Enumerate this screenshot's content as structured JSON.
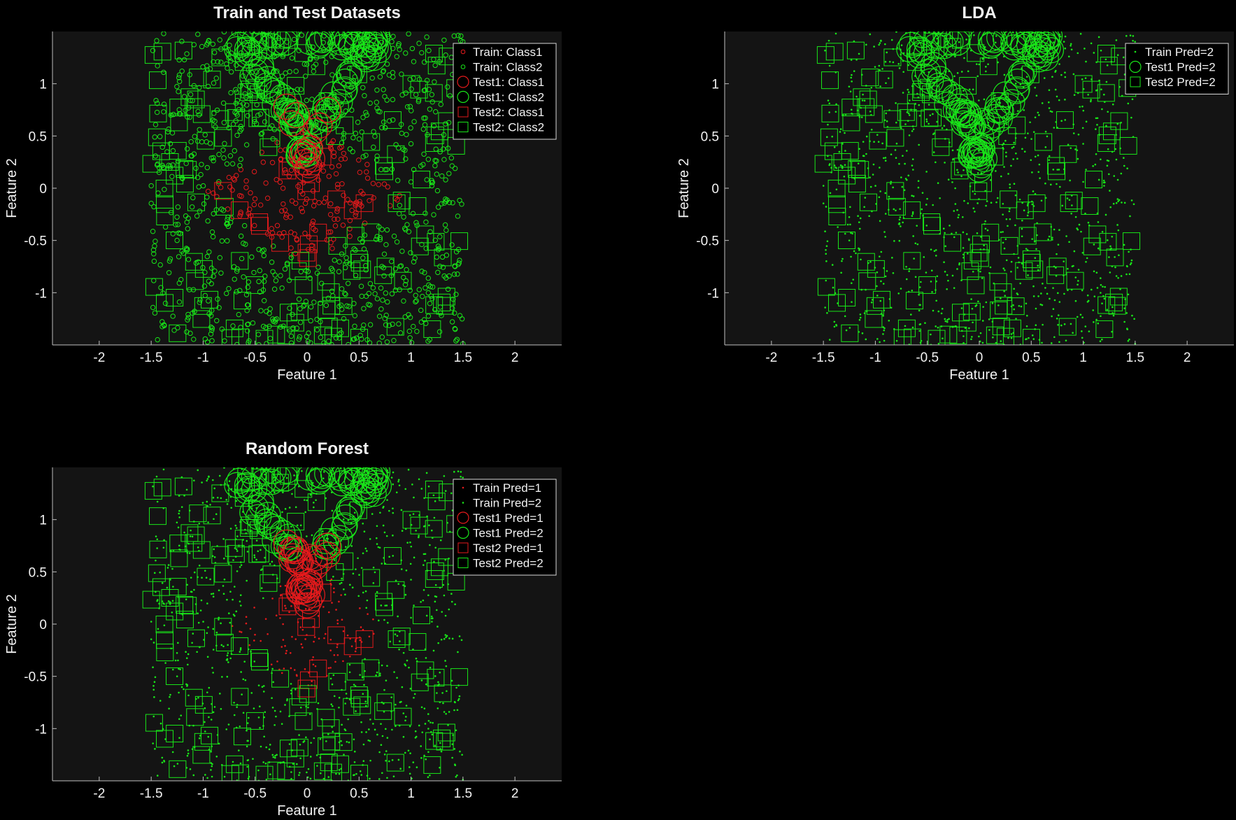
{
  "figure": {
    "background": "#000000",
    "axes_background": "#141414",
    "axis_color": "#bfbfbf",
    "class1_color": "#e41a1c",
    "class2_color": "#19e619"
  },
  "chart_data": [
    {
      "type": "scatter",
      "title": "Train and Test Datasets",
      "xlabel": "Feature 1",
      "ylabel": "Feature 2",
      "xlim": [
        -2.45,
        2.45
      ],
      "ylim": [
        -1.5,
        1.5
      ],
      "xticks": [
        -2,
        -1.5,
        -1,
        -0.5,
        0,
        0.5,
        1,
        1.5,
        2
      ],
      "yticks": [
        -1,
        -0.5,
        0,
        0.5,
        1
      ],
      "grid": false,
      "legend_position": "top-right",
      "legend": [
        "Train: Class1",
        "Train: Class2",
        "Test1: Class1",
        "Test1: Class2",
        "Test2: Class1",
        "Test2: Class2"
      ],
      "series": [
        {
          "name": "Train: Class1",
          "marker": "small-circle",
          "color": "#e41a1c",
          "x_range": [
            -1,
            1
          ],
          "y_range": [
            -0.75,
            0.65
          ],
          "description": "points inside the central diamond region |x|+|y|<1"
        },
        {
          "name": "Train: Class2",
          "marker": "small-circle",
          "color": "#19e619",
          "x_range": [
            -1.5,
            1.5
          ],
          "y_range": [
            -1.5,
            1.5
          ],
          "description": "points outside the central region"
        },
        {
          "name": "Test1: Class1",
          "marker": "large-circle",
          "color": "#e41a1c",
          "x": [
            0.0,
            -0.02,
            0.02,
            -0.05,
            0.05,
            0.0,
            -0.03,
            0.03,
            -0.15,
            0.12,
            -0.2,
            0.2,
            -0.1,
            0.08
          ],
          "y": [
            0.3,
            0.25,
            0.22,
            0.32,
            0.28,
            0.18,
            0.35,
            0.38,
            0.62,
            0.6,
            0.78,
            0.75,
            0.7,
            0.55
          ]
        },
        {
          "name": "Test1: Class2",
          "marker": "large-circle",
          "color": "#19e619",
          "description": "V-shaped arc of points from (-0.7,1.45) and (0.7,1.45) down to (0,0.3)"
        },
        {
          "name": "Test2: Class1",
          "marker": "square",
          "color": "#e41a1c",
          "x_range": [
            -0.9,
            0.9
          ],
          "y_range": [
            -0.7,
            0.6
          ]
        },
        {
          "name": "Test2: Class2",
          "marker": "square",
          "color": "#19e619",
          "x_range": [
            -1.5,
            1.5
          ],
          "y_range": [
            -1.5,
            1.5
          ]
        }
      ]
    },
    {
      "type": "scatter",
      "title": "LDA",
      "xlabel": "Feature 1",
      "ylabel": "Feature 2",
      "xlim": [
        -2.45,
        2.45
      ],
      "ylim": [
        -1.5,
        1.5
      ],
      "xticks": [
        -2,
        -1.5,
        -1,
        -0.5,
        0,
        0.5,
        1,
        1.5,
        2
      ],
      "yticks": [
        -1,
        -0.5,
        0,
        0.5,
        1
      ],
      "grid": false,
      "legend_position": "top-right",
      "legend": [
        "Train Pred=2",
        "Test1 Pred=2",
        "Test2 Pred=2"
      ],
      "series": [
        {
          "name": "Train Pred=2",
          "marker": "dot",
          "color": "#19e619",
          "description": "all training points predicted class 2"
        },
        {
          "name": "Test1 Pred=2",
          "marker": "large-circle",
          "color": "#19e619",
          "description": "all Test1 points predicted class 2"
        },
        {
          "name": "Test2 Pred=2",
          "marker": "square",
          "color": "#19e619",
          "description": "all Test2 points predicted class 2"
        }
      ]
    },
    {
      "type": "scatter",
      "title": "Random Forest",
      "xlabel": "Feature 1",
      "ylabel": "Feature 2",
      "xlim": [
        -2.45,
        2.45
      ],
      "ylim": [
        -1.5,
        1.5
      ],
      "xticks": [
        -2,
        -1.5,
        -1,
        -0.5,
        0,
        0.5,
        1,
        1.5,
        2
      ],
      "yticks": [
        -1,
        -0.5,
        0,
        0.5,
        1
      ],
      "grid": false,
      "legend_position": "top-right",
      "legend": [
        "Train Pred=1",
        "Train Pred=2",
        "Test1 Pred=1",
        "Test1 Pred=2",
        "Test2 Pred=1",
        "Test2 Pred=2"
      ],
      "series": [
        {
          "name": "Train Pred=1",
          "marker": "dot",
          "color": "#e41a1c"
        },
        {
          "name": "Train Pred=2",
          "marker": "dot",
          "color": "#19e619"
        },
        {
          "name": "Test1 Pred=1",
          "marker": "large-circle",
          "color": "#e41a1c"
        },
        {
          "name": "Test1 Pred=2",
          "marker": "large-circle",
          "color": "#19e619"
        },
        {
          "name": "Test2 Pred=1",
          "marker": "square",
          "color": "#e41a1c"
        },
        {
          "name": "Test2 Pred=2",
          "marker": "square",
          "color": "#19e619"
        }
      ]
    }
  ]
}
